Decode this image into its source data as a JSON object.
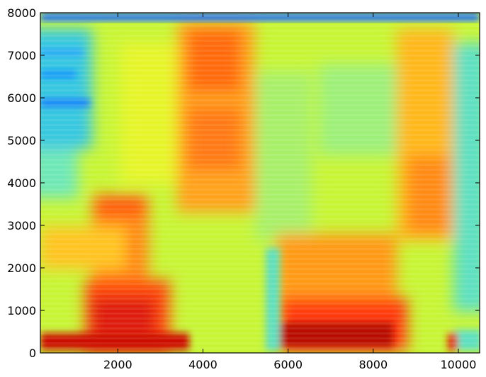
{
  "chart_data": {
    "type": "heatmap",
    "title": "",
    "xlabel": "",
    "ylabel": "",
    "colormap": "jet",
    "xlim": [
      180,
      10500
    ],
    "ylim": [
      0,
      8000
    ],
    "x_ticks": [
      2000,
      4000,
      6000,
      8000,
      10000
    ],
    "x_tick_labels": [
      "2000",
      "4000",
      "6000",
      "8000",
      "10000"
    ],
    "y_ticks": [
      0,
      1000,
      2000,
      3000,
      4000,
      5000,
      6000,
      7000,
      8000
    ],
    "y_tick_labels": [
      "0",
      "1000",
      "2000",
      "3000",
      "4000",
      "5000",
      "6000",
      "7000",
      "8000"
    ],
    "grid": false,
    "description_of_regions": [
      {
        "x_range": [
          180,
          3700
        ],
        "y_range": [
          0,
          400
        ],
        "level": "very high"
      },
      {
        "x_range": [
          1500,
          3300
        ],
        "y_range": [
          400,
          1600
        ],
        "level": "very high"
      },
      {
        "x_range": [
          1500,
          3000
        ],
        "y_range": [
          2000,
          3800
        ],
        "level": "high"
      },
      {
        "x_range": [
          3700,
          5300
        ],
        "y_range": [
          3200,
          7800
        ],
        "level": "high"
      },
      {
        "x_range": [
          5800,
          8800
        ],
        "y_range": [
          0,
          1800
        ],
        "level": "very high"
      },
      {
        "x_range": [
          8700,
          9900
        ],
        "y_range": [
          2500,
          7600
        ],
        "level": "high"
      },
      {
        "x_range": [
          180,
          1500
        ],
        "y_range": [
          5500,
          7500
        ],
        "level": "low"
      },
      {
        "x_range": [
          180,
          10500
        ],
        "y_range": [
          7800,
          8000
        ],
        "level": "very low"
      }
    ]
  }
}
